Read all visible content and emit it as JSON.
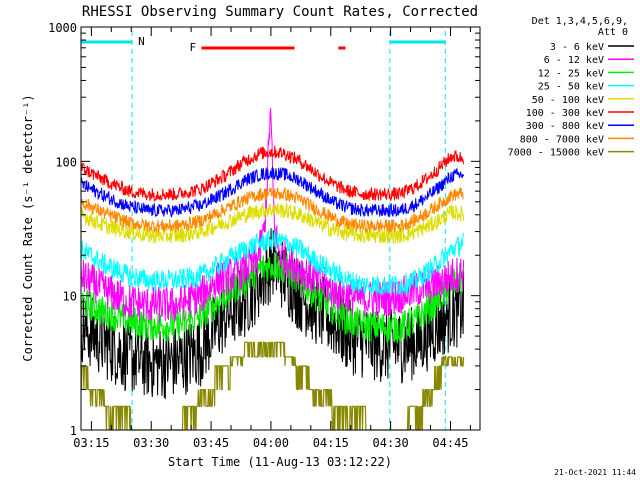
{
  "chart_data": {
    "type": "line",
    "title": "RHESSI Observing Summary Count Rates, Corrected",
    "xlabel": "Start Time (11-Aug-13 03:12:22)",
    "ylabel": "Corrected Count Rate (s⁻¹ detector⁻¹)",
    "y_scale": "log",
    "ylim": [
      1,
      1000
    ],
    "xlim_minutes": [
      0,
      100
    ],
    "x_ticks": [
      {
        "label": "03:15",
        "minute": 2.6
      },
      {
        "label": "03:30",
        "minute": 17.6
      },
      {
        "label": "03:45",
        "minute": 32.6
      },
      {
        "label": "04:00",
        "minute": 47.6
      },
      {
        "label": "04:15",
        "minute": 62.6
      },
      {
        "label": "04:30",
        "minute": 77.6
      },
      {
        "label": "04:45",
        "minute": 92.6
      }
    ],
    "y_ticks": [
      {
        "label": "1",
        "value": 1
      },
      {
        "label": "10",
        "value": 10
      },
      {
        "label": "100",
        "value": 100
      },
      {
        "label": "1000",
        "value": 1000
      }
    ],
    "legend_header": [
      "Det 1,3,4,5,6,9,",
      "Att 0"
    ],
    "legend_position": "right",
    "grid": false,
    "series": [
      {
        "name": "3 - 6 keV",
        "color": "#000000",
        "anchors": [
          [
            0,
            6
          ],
          [
            6,
            4.5
          ],
          [
            12,
            3.5
          ],
          [
            17,
            3.2
          ],
          [
            24,
            3.2
          ],
          [
            30,
            4
          ],
          [
            36,
            7
          ],
          [
            41,
            9
          ],
          [
            45,
            13
          ],
          [
            48,
            18
          ],
          [
            51,
            14
          ],
          [
            55,
            10
          ],
          [
            59,
            8
          ],
          [
            63,
            6.5
          ],
          [
            67,
            5
          ],
          [
            71,
            4.5
          ],
          [
            76,
            4.2
          ],
          [
            80,
            4.2
          ],
          [
            84,
            4.5
          ],
          [
            88,
            5.5
          ],
          [
            93,
            7.5
          ],
          [
            96,
            8
          ]
        ]
      },
      {
        "name": "6 - 12 keV",
        "color": "#ff00ff",
        "anchors": [
          [
            0,
            14
          ],
          [
            6,
            11
          ],
          [
            12,
            9
          ],
          [
            17,
            8.5
          ],
          [
            24,
            8.5
          ],
          [
            30,
            10
          ],
          [
            34,
            13
          ],
          [
            40,
            15
          ],
          [
            44,
            18
          ],
          [
            46,
            30
          ],
          [
            47.5,
            240
          ],
          [
            48.5,
            30
          ],
          [
            50,
            20
          ],
          [
            55,
            16
          ],
          [
            59,
            13
          ],
          [
            63,
            11
          ],
          [
            67,
            10
          ],
          [
            71,
            9.5
          ],
          [
            76,
            9.5
          ],
          [
            80,
            10
          ],
          [
            84,
            11
          ],
          [
            88,
            12
          ],
          [
            93,
            14
          ],
          [
            96,
            15
          ]
        ]
      },
      {
        "name": "12 - 25 keV",
        "color": "#00ee00",
        "anchors": [
          [
            0,
            9
          ],
          [
            6,
            7.5
          ],
          [
            12,
            6.5
          ],
          [
            17,
            6
          ],
          [
            24,
            6
          ],
          [
            30,
            7
          ],
          [
            36,
            10
          ],
          [
            41,
            13
          ],
          [
            45,
            16
          ],
          [
            48,
            17
          ],
          [
            51,
            16
          ],
          [
            55,
            13
          ],
          [
            59,
            10
          ],
          [
            63,
            8
          ],
          [
            67,
            6.5
          ],
          [
            71,
            6
          ],
          [
            76,
            5.8
          ],
          [
            80,
            5.8
          ],
          [
            84,
            6.5
          ],
          [
            88,
            8.5
          ],
          [
            93,
            12
          ],
          [
            96,
            14
          ]
        ]
      },
      {
        "name": "25 - 50 keV",
        "color": "#00ffff",
        "anchors": [
          [
            0,
            22
          ],
          [
            6,
            17
          ],
          [
            12,
            14
          ],
          [
            17,
            13
          ],
          [
            24,
            13
          ],
          [
            30,
            14
          ],
          [
            36,
            18
          ],
          [
            41,
            22
          ],
          [
            45,
            25
          ],
          [
            48,
            26
          ],
          [
            51,
            25
          ],
          [
            55,
            22
          ],
          [
            59,
            18
          ],
          [
            63,
            15
          ],
          [
            67,
            13
          ],
          [
            71,
            12
          ],
          [
            76,
            12
          ],
          [
            80,
            12
          ],
          [
            84,
            13
          ],
          [
            88,
            16
          ],
          [
            93,
            22
          ],
          [
            96,
            25
          ]
        ]
      },
      {
        "name": "50 - 100 keV",
        "color": "#dddd00",
        "anchors": [
          [
            0,
            40
          ],
          [
            6,
            33
          ],
          [
            12,
            30
          ],
          [
            17,
            28
          ],
          [
            24,
            28
          ],
          [
            30,
            30
          ],
          [
            36,
            35
          ],
          [
            41,
            40
          ],
          [
            45,
            43
          ],
          [
            48,
            44
          ],
          [
            51,
            43
          ],
          [
            55,
            40
          ],
          [
            59,
            35
          ],
          [
            63,
            31
          ],
          [
            67,
            29
          ],
          [
            71,
            28
          ],
          [
            76,
            28
          ],
          [
            80,
            28
          ],
          [
            84,
            30
          ],
          [
            88,
            34
          ],
          [
            93,
            42
          ],
          [
            96,
            40
          ]
        ]
      },
      {
        "name": "100 - 300 keV",
        "color": "#ff0000",
        "anchors": [
          [
            0,
            90
          ],
          [
            6,
            72
          ],
          [
            12,
            60
          ],
          [
            17,
            57
          ],
          [
            24,
            57
          ],
          [
            30,
            62
          ],
          [
            36,
            78
          ],
          [
            41,
            100
          ],
          [
            45,
            115
          ],
          [
            48,
            118
          ],
          [
            51,
            115
          ],
          [
            55,
            100
          ],
          [
            59,
            82
          ],
          [
            63,
            68
          ],
          [
            67,
            60
          ],
          [
            71,
            57
          ],
          [
            76,
            57
          ],
          [
            80,
            57
          ],
          [
            84,
            65
          ],
          [
            88,
            80
          ],
          [
            93,
            110
          ],
          [
            96,
            105
          ]
        ]
      },
      {
        "name": "300 - 800 keV",
        "color": "#0000ff",
        "anchors": [
          [
            0,
            68
          ],
          [
            6,
            55
          ],
          [
            12,
            46
          ],
          [
            17,
            43
          ],
          [
            24,
            43
          ],
          [
            30,
            47
          ],
          [
            36,
            58
          ],
          [
            41,
            72
          ],
          [
            45,
            80
          ],
          [
            48,
            82
          ],
          [
            51,
            80
          ],
          [
            55,
            72
          ],
          [
            59,
            60
          ],
          [
            63,
            50
          ],
          [
            67,
            45
          ],
          [
            71,
            43
          ],
          [
            76,
            43
          ],
          [
            80,
            43
          ],
          [
            84,
            48
          ],
          [
            88,
            58
          ],
          [
            93,
            78
          ],
          [
            96,
            80
          ]
        ]
      },
      {
        "name": "800 - 7000 keV",
        "color": "#ff8800",
        "anchors": [
          [
            0,
            50
          ],
          [
            6,
            41
          ],
          [
            12,
            35
          ],
          [
            17,
            33
          ],
          [
            24,
            33
          ],
          [
            30,
            36
          ],
          [
            36,
            44
          ],
          [
            41,
            52
          ],
          [
            45,
            57
          ],
          [
            48,
            58
          ],
          [
            51,
            57
          ],
          [
            55,
            52
          ],
          [
            59,
            44
          ],
          [
            63,
            38
          ],
          [
            67,
            34
          ],
          [
            71,
            33
          ],
          [
            76,
            33
          ],
          [
            80,
            33
          ],
          [
            84,
            37
          ],
          [
            88,
            44
          ],
          [
            93,
            56
          ],
          [
            96,
            58
          ]
        ]
      },
      {
        "name": "7000 - 15000 keV",
        "color": "#888800",
        "anchors": [
          [
            0,
            3
          ],
          [
            4,
            2
          ],
          [
            8,
            1.5
          ],
          [
            13,
            1.2
          ],
          [
            19,
            1.1
          ],
          [
            25,
            1.2
          ],
          [
            31,
            2
          ],
          [
            36,
            3
          ],
          [
            41,
            4
          ],
          [
            46,
            4.8
          ],
          [
            49,
            4.5
          ],
          [
            53,
            3.5
          ],
          [
            57,
            2.5
          ],
          [
            62,
            1.8
          ],
          [
            67,
            1.4
          ],
          [
            72,
            1.2
          ],
          [
            77,
            1.1
          ],
          [
            80,
            1.1
          ],
          [
            83,
            1.3
          ],
          [
            87,
            2
          ],
          [
            91,
            3.5
          ],
          [
            96,
            3.5
          ]
        ]
      }
    ],
    "annotations": {
      "night_periods": [
        {
          "start_min": 0,
          "end_min": 12.8,
          "label": "N"
        },
        {
          "start_min": 77.4,
          "end_min": 91.3,
          "label": ""
        }
      ],
      "flare_flag": {
        "label": "F",
        "segments": [
          [
            30.2,
            53.5
          ],
          [
            64.5,
            66.3
          ]
        ]
      }
    },
    "footer_date": "21-Oct-2021 11:44"
  }
}
